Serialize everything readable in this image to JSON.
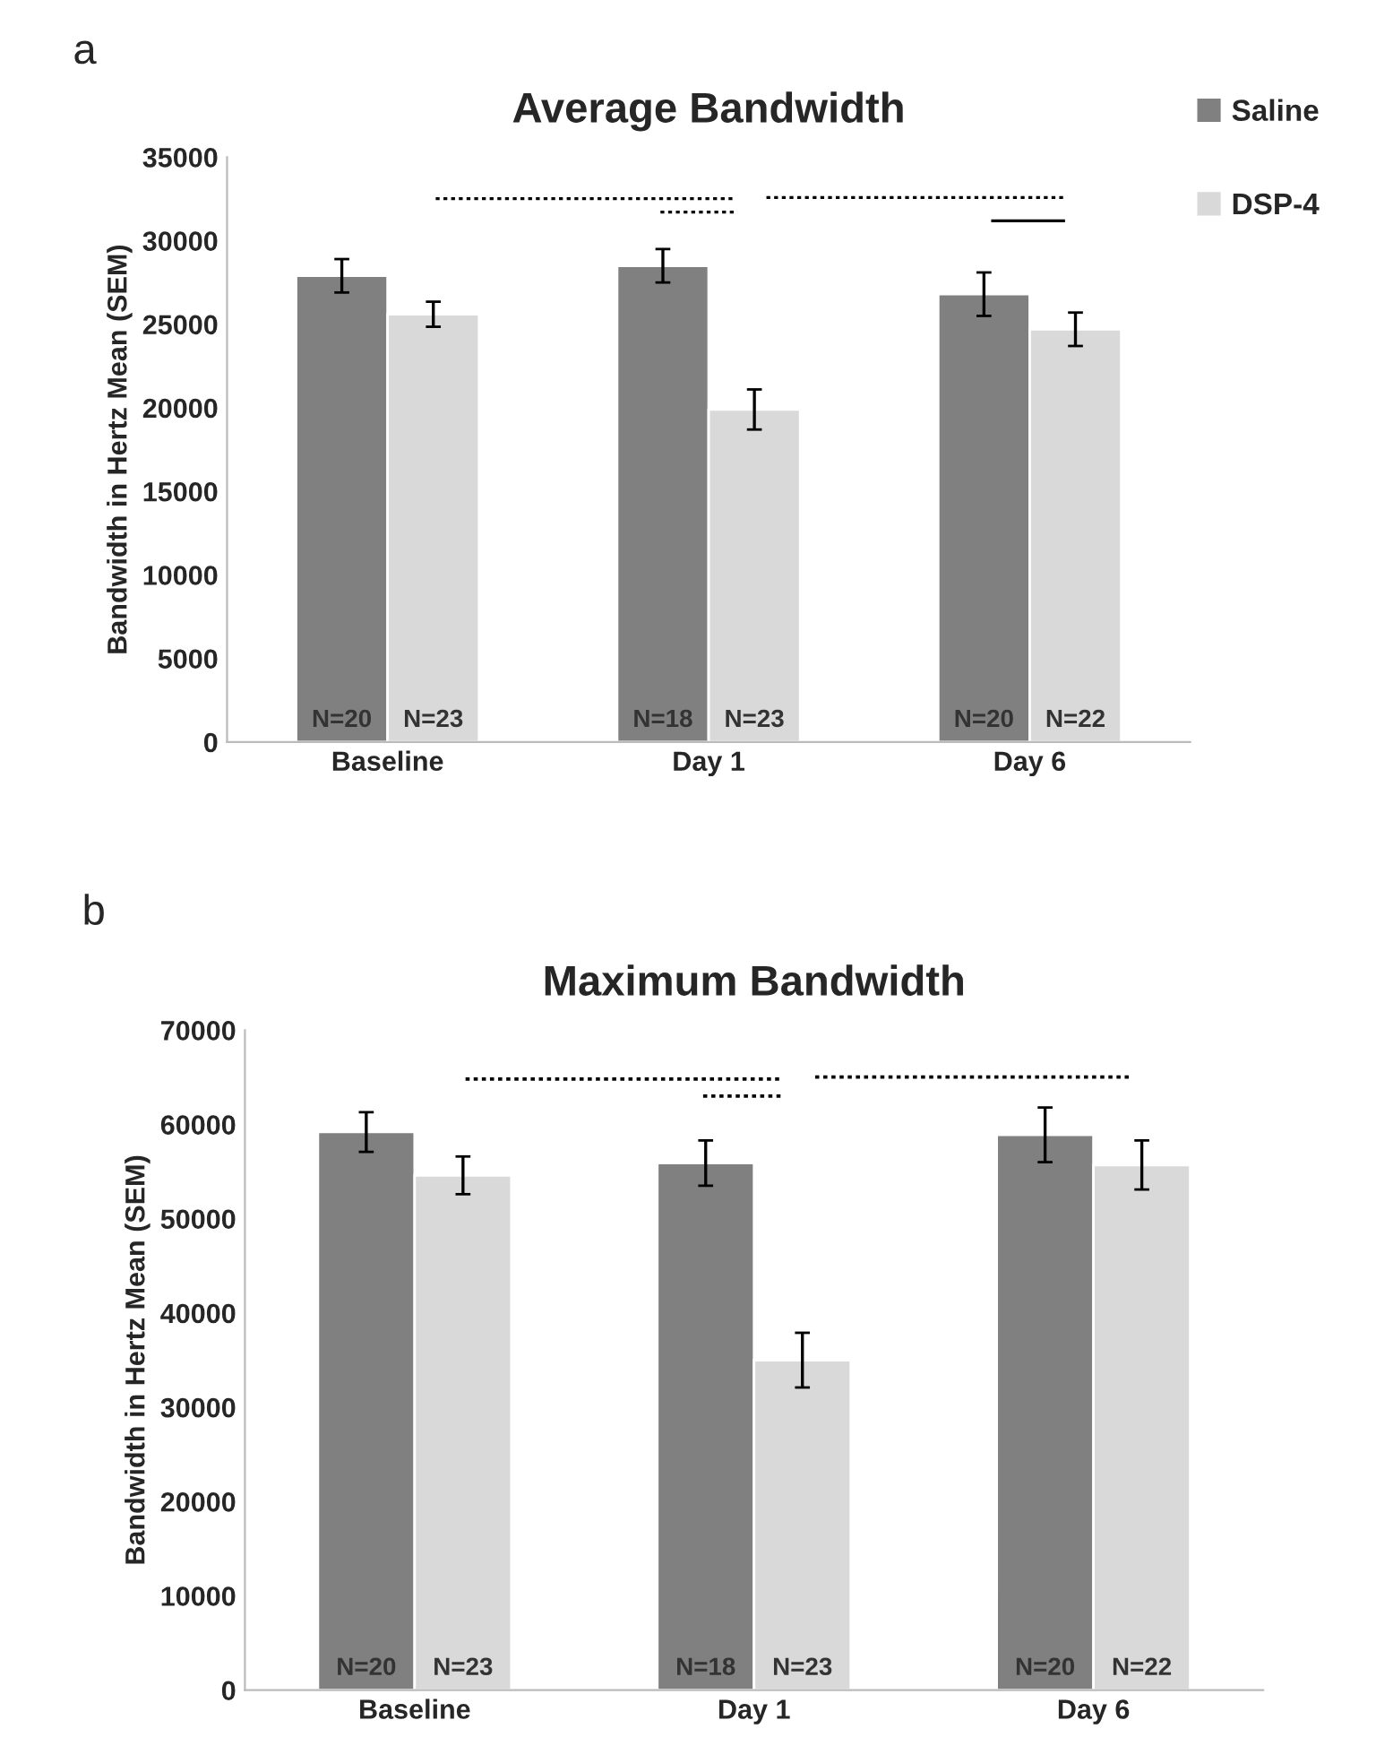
{
  "chart_data": [
    {
      "type": "bar",
      "title": "Average Bandwidth",
      "ylabel": "Bandwidth in Hertz Mean (SEM)",
      "categories": [
        "Baseline",
        "Day 1",
        "Day 6"
      ],
      "series": [
        {
          "name": "Saline",
          "color": "#808080",
          "values": [
            27900,
            28500,
            26800
          ],
          "errors": [
            1000,
            1000,
            1300
          ]
        },
        {
          "name": "DSP-4",
          "color": "#d9d9d9",
          "values": [
            25600,
            19900,
            24700
          ],
          "errors": [
            750,
            1200,
            1000
          ]
        }
      ],
      "ylim": [
        0,
        35000
      ],
      "yticks": [
        0,
        5000,
        10000,
        15000,
        20000,
        25000,
        30000,
        35000
      ],
      "grid": false,
      "legend": "top right",
      "annotations": [
        "a",
        "N=20",
        "N=23",
        "N=18",
        "N=23",
        "N=20",
        "N=22"
      ]
    },
    {
      "type": "bar",
      "title": "Maximum Bandwidth",
      "ylabel": "Bandwidth in Hertz Mean (SEM)",
      "categories": [
        "Baseline",
        "Day 1",
        "Day 6"
      ],
      "series": [
        {
          "color": "#808080",
          "values": [
            59200,
            55900,
            58900
          ],
          "errors": [
            2100,
            2400,
            2900
          ]
        },
        {
          "color": "#d9d9d9",
          "values": [
            54600,
            35000,
            55700
          ],
          "errors": [
            2000,
            2900,
            2600
          ]
        }
      ],
      "ylim": [
        0,
        70000
      ],
      "yticks": [
        0,
        10000,
        20000,
        30000,
        40000,
        50000,
        60000,
        70000
      ],
      "grid": false,
      "legend": false,
      "annotations": [
        "b",
        "N=20",
        "N=23",
        "N=18",
        "N=23",
        "N=20",
        "N=22"
      ]
    }
  ]
}
